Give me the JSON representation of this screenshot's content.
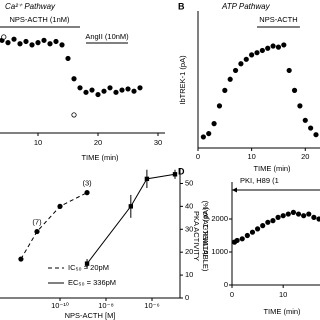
{
  "chart_data": [
    {
      "type": "scatter",
      "title": "Ca²⁺ Pathway",
      "xlabel": "TIME (min)",
      "xlim": [
        3.5,
        30
      ],
      "xticks": [
        10,
        20,
        30
      ],
      "ylim": [
        0,
        100
      ],
      "annotations": [
        {
          "text": "NPS-ACTH (1nM)",
          "x": [
            3.5,
            17
          ]
        },
        {
          "text": "AngII (10nM)",
          "x": [
            18,
            25
          ]
        }
      ],
      "series": [
        {
          "color": "#000000",
          "marker": "filled",
          "x": [
            4,
            5,
            6,
            7,
            8,
            9,
            10,
            11,
            12,
            13,
            14,
            15,
            16,
            17,
            18,
            19,
            20,
            21,
            22,
            23,
            24,
            25,
            26,
            27
          ],
          "values": [
            82,
            80,
            83,
            79,
            81,
            78,
            80,
            82,
            79,
            81,
            78,
            66,
            48,
            40,
            36,
            38,
            34,
            37,
            40,
            36,
            38,
            39,
            37,
            40
          ]
        },
        {
          "color": "#000000",
          "marker": "open",
          "x": [
            4.3,
            16
          ],
          "values": [
            85,
            16
          ]
        }
      ]
    },
    {
      "type": "scatter",
      "panel": "B",
      "title": "ATP Pathway",
      "xlabel": "TIME (min)",
      "ylabel": "IbTREK-1 (pA)",
      "xlim": [
        0,
        22
      ],
      "xticks": [
        0,
        10,
        20
      ],
      "ylim": [
        0,
        1200
      ],
      "annotations": [
        {
          "text": "NPS-ACTH",
          "x": [
            11,
            19
          ]
        }
      ],
      "series": [
        {
          "color": "#000000",
          "marker": "filled",
          "x": [
            1,
            2,
            3,
            4,
            5,
            6,
            7,
            8,
            9,
            10,
            11,
            12,
            13,
            14,
            15,
            16,
            17,
            18,
            19,
            20,
            21,
            22
          ],
          "values": [
            100,
            130,
            220,
            380,
            520,
            620,
            700,
            760,
            800,
            840,
            860,
            880,
            900,
            920,
            910,
            930,
            700,
            520,
            380,
            250,
            180,
            120
          ]
        }
      ]
    },
    {
      "type": "line",
      "xlabel": "NPS-ACTH [M]",
      "ylabel": [
        "PKA ACTIVITY",
        "(% of ACTIVATABLE)"
      ],
      "xscale": "log",
      "xlim": [
        1e-12,
        1e-05
      ],
      "xticks": [
        {
          "value": 1e-10,
          "label": "10⁻¹⁰"
        },
        {
          "value": 1e-08,
          "label": "10⁻⁸"
        },
        {
          "value": 1e-06,
          "label": "10⁻⁶"
        }
      ],
      "ylim": [
        0,
        55
      ],
      "yticks": [
        0,
        10,
        20,
        30,
        40,
        50
      ],
      "yaxis_side": "right",
      "series": [
        {
          "name": "IC₅₀ = 20pM",
          "color": "#000000",
          "line_style": "dashed",
          "marker": "circle",
          "x": [
            2e-12,
            1e-11,
            1e-10,
            1.5e-09
          ],
          "values": [
            17,
            29,
            40,
            46
          ],
          "n_labels": [
            null,
            "(7)",
            null,
            "(3)"
          ]
        },
        {
          "name": "EC₅₀ = 336pM",
          "color": "#000000",
          "line_style": "solid",
          "marker": "square",
          "x": [
            1.5e-09,
            1.2e-07,
            6e-07,
            1e-05
          ],
          "values": [
            15,
            40,
            52,
            54
          ],
          "errors": [
            2,
            5,
            4,
            2
          ]
        }
      ]
    },
    {
      "type": "scatter",
      "panel": "D",
      "title": "PKI, H89 (1",
      "xlabel": "TIME (min)",
      "ylabel": "IbTREK-1 (pA)",
      "xlim": [
        0,
        17
      ],
      "xticks": [
        0,
        10
      ],
      "ylim": [
        0,
        3000
      ],
      "yticks": [
        0,
        1000,
        2000
      ],
      "series": [
        {
          "color": "#000000",
          "marker": "filled",
          "x": [
            0.5,
            1,
            2,
            3,
            4,
            5,
            6,
            7,
            8,
            9,
            10,
            11,
            12,
            13,
            14,
            15,
            16,
            17
          ],
          "values": [
            1300,
            1350,
            1400,
            1500,
            1600,
            1700,
            1800,
            1900,
            1950,
            2050,
            2100,
            2150,
            2200,
            2150,
            2100,
            2150,
            2050,
            2000
          ]
        }
      ]
    }
  ]
}
